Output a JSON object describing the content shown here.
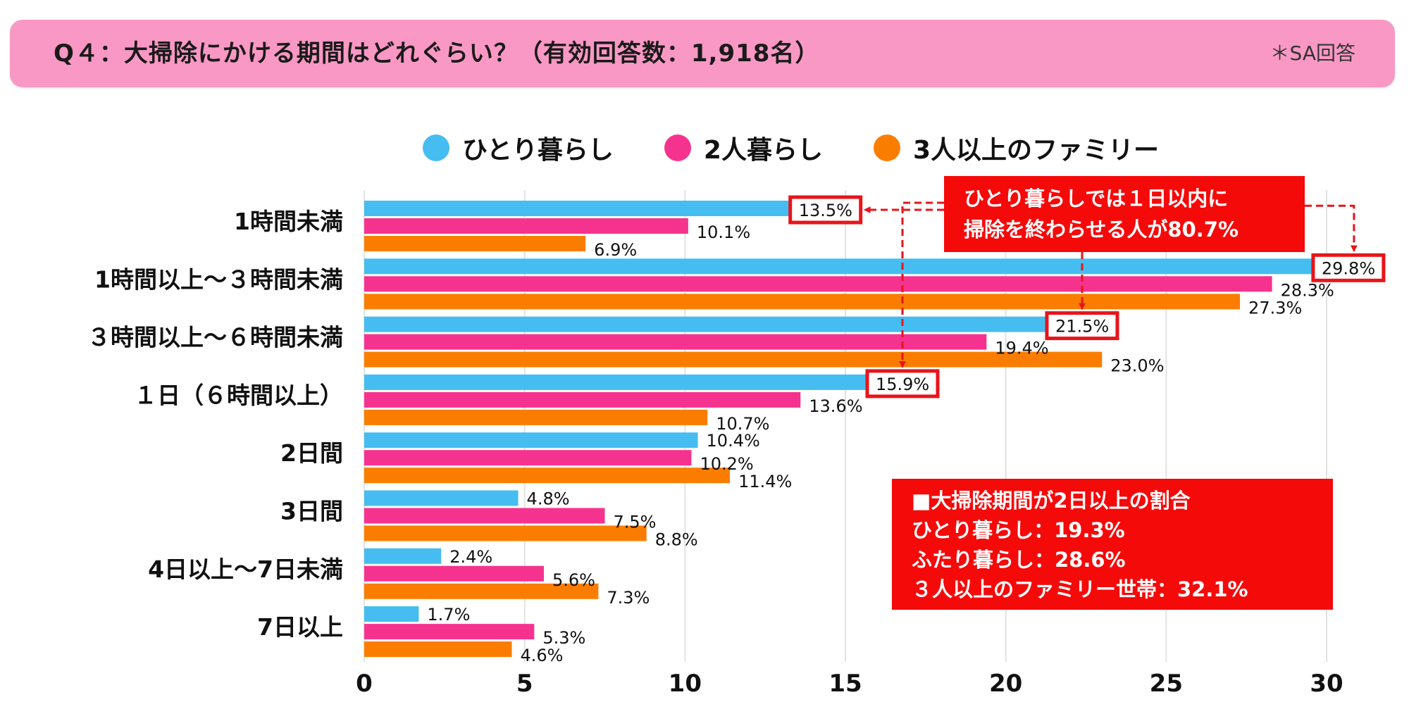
{
  "header": {
    "title": "Q４：大掃除にかける期間はどれぐらい？（有効回答数：1,918名）",
    "note": "＊SA回答"
  },
  "legend": [
    {
      "label": "ひとり暮らし",
      "color": "#46bdf0"
    },
    {
      "label": "2人暮らし",
      "color": "#f5338f"
    },
    {
      "label": "3人以上のファミリー",
      "color": "#fb7d00"
    }
  ],
  "callouts": {
    "top": {
      "lines": [
        "ひとり暮らしでは１日以内に",
        "掃除を終わらせる人が80.7%"
      ],
      "color": "#f50a0a"
    },
    "bottom": {
      "lines": [
        "■大掃除期間が2日以上の割合",
        "ひとり暮らし：19.3%",
        "ふたり暮らし：28.6%",
        "３人以上のファミリー世帯：32.1%"
      ],
      "color": "#f50a0a"
    }
  },
  "chart_data": {
    "type": "bar",
    "orientation": "horizontal",
    "title": "Q４：大掃除にかける期間はどれぐらい？（有効回答数：1,918名）",
    "xlabel": "",
    "ylabel": "",
    "xlim": [
      0,
      30
    ],
    "xticks": [
      0,
      5,
      10,
      15,
      20,
      25,
      30
    ],
    "grid": true,
    "legend_position": "top",
    "categories": [
      "1時間未満",
      "1時間以上～３時間未満",
      "３時間以上～６時間未満",
      "１日（６時間以上）",
      "2日間",
      "3日間",
      "4日以上～7日未満",
      "7日以上"
    ],
    "series": [
      {
        "name": "ひとり暮らし",
        "color": "#46bdf0",
        "values": [
          13.5,
          29.8,
          21.5,
          15.9,
          10.4,
          4.8,
          2.4,
          1.7
        ]
      },
      {
        "name": "2人暮らし",
        "color": "#f5338f",
        "values": [
          10.1,
          28.3,
          19.4,
          13.6,
          10.2,
          7.5,
          5.6,
          5.3
        ]
      },
      {
        "name": "3人以上のファミリー",
        "color": "#fb7d00",
        "values": [
          6.9,
          27.3,
          23.0,
          10.7,
          11.4,
          8.8,
          7.3,
          4.6
        ]
      }
    ],
    "value_suffix": "%",
    "highlighted": [
      {
        "series": 0,
        "category": 0
      },
      {
        "series": 0,
        "category": 1
      },
      {
        "series": 0,
        "category": 2
      },
      {
        "series": 0,
        "category": 3
      }
    ],
    "highlight_color": "#e8141a"
  }
}
